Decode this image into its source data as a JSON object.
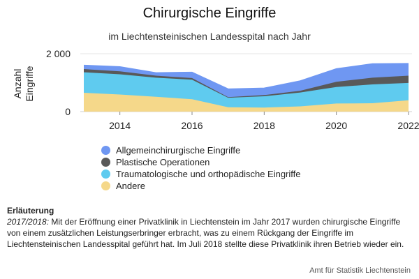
{
  "chart_data": {
    "type": "area",
    "stacked": true,
    "title": "Chirurgische Eingriffe",
    "subtitle": "im Liechtensteinischen Landesspital nach Jahr",
    "ylabel": "Anzahl Eingriffe",
    "xlabel": "",
    "x": [
      2013,
      2014,
      2015,
      2016,
      2017,
      2018,
      2019,
      2020,
      2021,
      2022
    ],
    "xticks": [
      "2014",
      "2016",
      "2018",
      "2020",
      "2022"
    ],
    "yticks": [
      "0",
      "2 000"
    ],
    "ylim": [
      0,
      2000
    ],
    "grid": true,
    "legend_position": "bottom-left",
    "series": [
      {
        "name": "Andere",
        "color": "#f5d88a",
        "values": [
          650,
          590,
          510,
          430,
          150,
          140,
          180,
          280,
          290,
          390
        ]
      },
      {
        "name": "Traumatologische und orthopädische Eingriffe",
        "color": "#5fcbef",
        "values": [
          710,
          700,
          660,
          670,
          330,
          390,
          480,
          570,
          650,
          600
        ]
      },
      {
        "name": "Plastische Operationen",
        "color": "#595959",
        "values": [
          110,
          100,
          70,
          60,
          20,
          40,
          60,
          180,
          230,
          250
        ]
      },
      {
        "name": "Allgemeinchirurgische Eingriffe",
        "color": "#6f97f2",
        "values": [
          130,
          160,
          100,
          200,
          280,
          240,
          340,
          450,
          480,
          420
        ]
      }
    ]
  },
  "legend": [
    {
      "label": "Allgemeinchirurgische Eingriffe",
      "color": "#6f97f2"
    },
    {
      "label": "Plastische Operationen",
      "color": "#595959"
    },
    {
      "label": "Traumatologische und orthopädische Eingriffe",
      "color": "#5fcbef"
    },
    {
      "label": "Andere",
      "color": "#f5d88a"
    }
  ],
  "note": {
    "heading": "Erläuterung",
    "year": "2017/2018:",
    "text": " Mit der Eröffnung einer Privatklinik in Liechtenstein im Jahr 2017 wurden chirurgische Eingriffe von einem zusätzlichen Leistungserbringer erbracht, was zu einem Rückgang der Eingriffe im Liechtensteinischen Landesspital geführt hat. Im Juli 2018 stellte diese Privatklinik ihren Betrieb wieder ein."
  },
  "source": "Amt für Statistik Liechtenstein"
}
